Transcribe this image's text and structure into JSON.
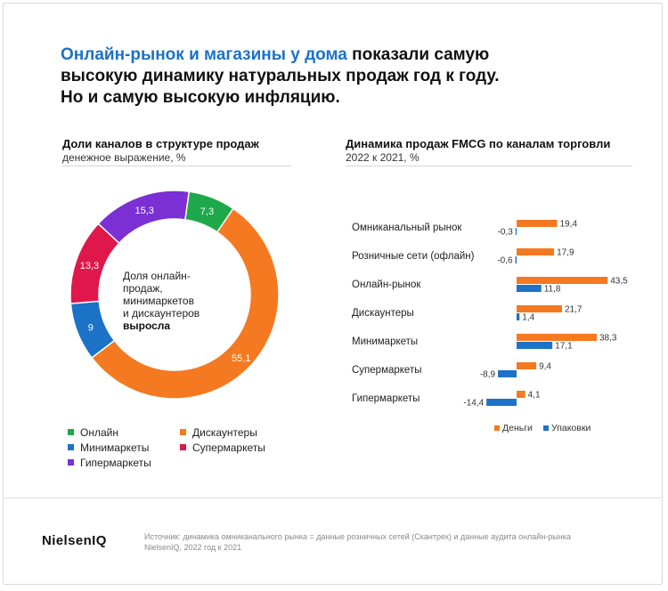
{
  "headline": {
    "accent": "Онлайн-рынок и магазины у дома",
    "line1_rest": " показали самую",
    "line2": "высокую динамику натуральных продаж год к году.",
    "line3": "Но и самую высокую инфляцию."
  },
  "left_panel": {
    "title": "Доли каналов в структуре продаж",
    "subtitle": "денежное выражение, %",
    "center_line1": "Доля онлайн-",
    "center_line2": "продаж,",
    "center_line3": "минимаркетов",
    "center_line4": "и дискаунтеров",
    "center_line5": "выросла"
  },
  "right_panel": {
    "title": "Динамика продаж FMCG по каналам торговли",
    "subtitle": "2022 к 2021, %"
  },
  "legend": [
    {
      "label": "Онлайн",
      "color": "#1fa84a"
    },
    {
      "label": "Дискаунтеры",
      "color": "#f47920"
    },
    {
      "label": "Минимаркеты",
      "color": "#1b72c7"
    },
    {
      "label": "Супермаркеты",
      "color": "#e0174a"
    },
    {
      "label": "Гипермаркеты",
      "color": "#7b2fd4"
    }
  ],
  "chart_data": [
    {
      "type": "pie",
      "variant": "donut",
      "slices": [
        {
          "name": "Онлайн",
          "value": 7.3,
          "label": "7,3",
          "color": "#1fa84a"
        },
        {
          "name": "Дискаунтеры",
          "value": 55.1,
          "label": "55,1",
          "color": "#f47920"
        },
        {
          "name": "Минимаркеты",
          "value": 9,
          "label": "9",
          "color": "#1b72c7"
        },
        {
          "name": "Супермаркеты",
          "value": 13.3,
          "label": "13,3",
          "color": "#e0174a"
        },
        {
          "name": "Гипермаркеты",
          "value": 15.3,
          "label": "15,3",
          "color": "#7b2fd4"
        }
      ]
    },
    {
      "type": "bar",
      "orientation": "horizontal",
      "categories": [
        "Омниканальный рынок",
        "Розничные сети (офлайн)",
        "Онлайн-рынок",
        "Дискаунтеры",
        "Минимаркеты",
        "Супермаркеты",
        "Гипермаркеты"
      ],
      "series": [
        {
          "name": "Деньги",
          "color": "#f47920",
          "values": [
            19.4,
            17.9,
            43.5,
            21.7,
            38.3,
            9.4,
            4.1
          ],
          "labels": [
            "19,4",
            "17,9",
            "43,5",
            "21,7",
            "38,3",
            "9,4",
            "4,1"
          ]
        },
        {
          "name": "Упаковки",
          "color": "#1b72c7",
          "values": [
            -0.3,
            -0.6,
            11.8,
            1.4,
            17.1,
            -8.9,
            -14.4
          ],
          "labels": [
            "-0,3",
            "-0,6",
            "11,8",
            "1,4",
            "17,1",
            "-8,9",
            "-14,4"
          ]
        }
      ],
      "legend_position": "bottom"
    }
  ],
  "footer": {
    "brand": "NielsenIQ",
    "source_line1": "Источник: динамика омниканального рынка = данные розничных сетей (Скантрек) и данные аудита онлайн-рынка",
    "source_line2": "NielsenIQ, 2022 год к 2021"
  }
}
